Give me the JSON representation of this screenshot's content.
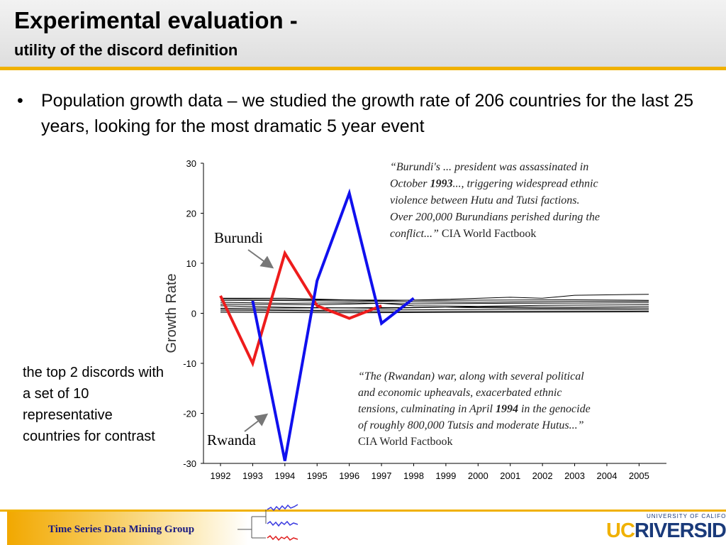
{
  "slide": {
    "title": "Experimental evaluation -",
    "subtitle": "utility of the discord definition",
    "bullet_marker": "•",
    "bullet_text": "Population growth data – we studied the growth rate of 206 countries for the last 25 years, looking for the most dramatic 5 year event",
    "side_note": "the top 2 discords with a set of 10 representative countries for contrast",
    "footer_group": "Time Series Data Mining Group",
    "footer_university": "UNIVERSITY OF CALIFORNIA",
    "footer_logo_uc": "UC",
    "footer_logo_riverside": "RIVERSIDE",
    "colors": {
      "accent": "#f0b100",
      "logo_blue": "#1a3a7a",
      "group_text": "#1a1a80"
    }
  },
  "chart_data": {
    "type": "line",
    "ylabel": "Growth Rate",
    "xlabel": "",
    "ylim": [
      -30,
      30
    ],
    "yticks": [
      30,
      20,
      10,
      0,
      -10,
      -20,
      -30
    ],
    "xticks": [
      "1992",
      "1993",
      "1994",
      "1995",
      "1996",
      "1997",
      "1998",
      "1999",
      "2000",
      "2001",
      "2002",
      "2003",
      "2004",
      "2005"
    ],
    "xlim": [
      1992,
      2005.3
    ],
    "grid": false,
    "series": [
      {
        "name": "Burundi",
        "color": "#ee1c1c",
        "width": 4,
        "x": [
          1992,
          1993,
          1994,
          1995,
          1996,
          1997
        ],
        "y": [
          3.5,
          -10,
          12,
          1.5,
          -1,
          1.5
        ]
      },
      {
        "name": "Rwanda",
        "color": "#1010ee",
        "width": 4,
        "x": [
          1993,
          1994,
          1995,
          1996,
          1997,
          1998
        ],
        "y": [
          2.5,
          -29.5,
          6.5,
          24,
          -2,
          3
        ]
      }
    ],
    "background_series": [
      {
        "color": "#000000",
        "x": [
          1992,
          1994,
          1997,
          1999,
          2001,
          2002,
          2003,
          2005.3
        ],
        "y": [
          3,
          3,
          2.5,
          2.8,
          3.2,
          3,
          3.6,
          3.8
        ]
      },
      {
        "color": "#000000",
        "x": [
          1992,
          1995,
          1998,
          2000,
          2003,
          2005.3
        ],
        "y": [
          2.6,
          2.5,
          2.3,
          2.2,
          2.4,
          2.4
        ]
      },
      {
        "color": "#000000",
        "x": [
          1992,
          1994,
          1996,
          1998,
          2001,
          2005.3
        ],
        "y": [
          2.2,
          2.0,
          2.1,
          1.9,
          2.0,
          2.1
        ]
      },
      {
        "color": "#000000",
        "x": [
          1992,
          1995,
          1997,
          1998,
          2000,
          2002,
          2005.3
        ],
        "y": [
          1.8,
          1.7,
          2.0,
          1.5,
          1.4,
          1.6,
          1.7
        ]
      },
      {
        "color": "#000000",
        "x": [
          1992,
          1994,
          1997,
          2000,
          2003,
          2005.3
        ],
        "y": [
          1.5,
          1.2,
          1.0,
          1.3,
          1.2,
          1.3
        ]
      },
      {
        "color": "#000000",
        "x": [
          1992,
          1996,
          1999,
          2002,
          2005.3
        ],
        "y": [
          1.0,
          1.1,
          1.2,
          1.0,
          1.0
        ]
      },
      {
        "color": "#000000",
        "x": [
          1992,
          1995,
          1998,
          2001,
          2005.3
        ],
        "y": [
          0.8,
          0.6,
          0.7,
          0.8,
          0.7
        ]
      },
      {
        "color": "#000000",
        "x": [
          1992,
          1994,
          1997,
          2000,
          2005.3
        ],
        "y": [
          0.5,
          0.5,
          0.3,
          0.4,
          0.4
        ]
      },
      {
        "color": "#000000",
        "x": [
          1992,
          1996,
          2000,
          2005.3
        ],
        "y": [
          0.2,
          0.1,
          0.2,
          0.3
        ]
      },
      {
        "color": "#000000",
        "x": [
          1992,
          1995,
          1999,
          2003,
          2005.3
        ],
        "y": [
          2.9,
          2.7,
          2.6,
          2.7,
          2.6
        ]
      }
    ],
    "annotations": {
      "burundi_quote": [
        {
          "parts": [
            {
              "t": "“Burundi's ... president was assassinated in"
            }
          ]
        },
        {
          "parts": [
            {
              "t": "October "
            },
            {
              "t": "1993",
              "b": true
            },
            {
              "t": "..., triggering widespread ethnic"
            }
          ]
        },
        {
          "parts": [
            {
              "t": "violence between Hutu and Tutsi factions."
            }
          ]
        },
        {
          "parts": [
            {
              "t": "Over 200,000 Burundians perished during the"
            }
          ]
        },
        {
          "parts": [
            {
              "t": "conflict...” "
            },
            {
              "t": "CIA World Factbook",
              "n": true
            }
          ]
        }
      ],
      "rwanda_quote": [
        {
          "parts": [
            {
              "t": "“The (Rwandan) war, along with several political"
            }
          ]
        },
        {
          "parts": [
            {
              "t": "and economic upheavals, exacerbated ethnic"
            }
          ]
        },
        {
          "parts": [
            {
              "t": "tensions, culminating in April "
            },
            {
              "t": "1994",
              "b": true
            },
            {
              "t": " in the genocide"
            }
          ]
        },
        {
          "parts": [
            {
              "t": "of roughly 800,000 Tutsis and moderate Hutus...”"
            }
          ]
        },
        {
          "parts": [
            {
              "t": "CIA World Factbook",
              "n": true
            }
          ]
        }
      ]
    }
  }
}
